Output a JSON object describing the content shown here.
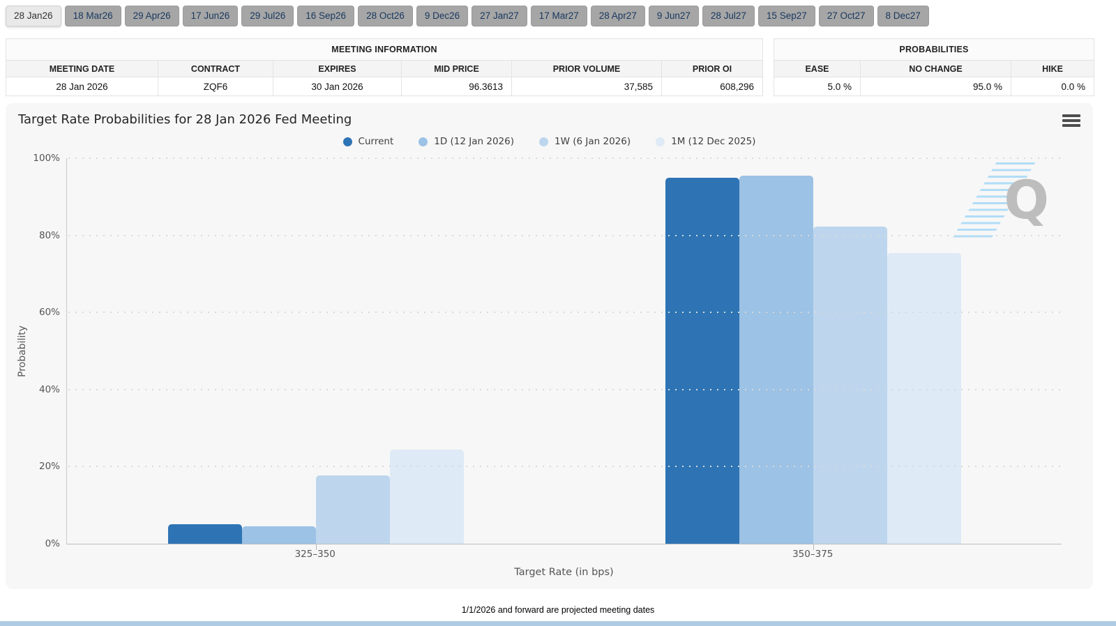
{
  "tabs": [
    {
      "label": "28 Jan26",
      "active": true
    },
    {
      "label": "18 Mar26",
      "active": false
    },
    {
      "label": "29 Apr26",
      "active": false
    },
    {
      "label": "17 Jun26",
      "active": false
    },
    {
      "label": "29 Jul26",
      "active": false
    },
    {
      "label": "16 Sep26",
      "active": false
    },
    {
      "label": "28 Oct26",
      "active": false
    },
    {
      "label": "9 Dec26",
      "active": false
    },
    {
      "label": "27 Jan27",
      "active": false
    },
    {
      "label": "17 Mar27",
      "active": false
    },
    {
      "label": "28 Apr27",
      "active": false
    },
    {
      "label": "9 Jun27",
      "active": false
    },
    {
      "label": "28 Jul27",
      "active": false
    },
    {
      "label": "15 Sep27",
      "active": false
    },
    {
      "label": "27 Oct27",
      "active": false
    },
    {
      "label": "8 Dec27",
      "active": false
    }
  ],
  "meeting_information": {
    "title": "MEETING INFORMATION",
    "columns": [
      "MEETING DATE",
      "CONTRACT",
      "EXPIRES",
      "MID PRICE",
      "PRIOR VOLUME",
      "PRIOR OI"
    ],
    "row": [
      "28 Jan 2026",
      "ZQF6",
      "30 Jan 2026",
      "96.3613",
      "37,585",
      "608,296"
    ]
  },
  "probabilities": {
    "title": "PROBABILITIES",
    "columns": [
      "EASE",
      "NO CHANGE",
      "HIKE"
    ],
    "row": [
      "5.0 %",
      "95.0 %",
      "0.0 %"
    ]
  },
  "chart": {
    "title": "Target Rate Probabilities for 28 Jan 2026 Fed Meeting",
    "watermark_letter": "Q"
  },
  "chart_data": {
    "type": "bar",
    "title": "Target Rate Probabilities for 28 Jan 2026 Fed Meeting",
    "categories": [
      "325–350",
      "350–375"
    ],
    "series": [
      {
        "name": "Current",
        "color": "#2E74B5",
        "values": [
          5.0,
          95.0
        ]
      },
      {
        "name": "1D (12 Jan 2026)",
        "color": "#9CC2E5",
        "values": [
          4.6,
          95.4
        ]
      },
      {
        "name": "1W (6 Jan 2026)",
        "color": "#BDD6EE",
        "values": [
          17.8,
          82.2
        ]
      },
      {
        "name": "1M (12 Dec 2025)",
        "color": "#DEEAF6",
        "values": [
          24.5,
          75.5
        ]
      }
    ],
    "xlabel": "Target Rate (in bps)",
    "ylabel": "Probability",
    "ylim": [
      0,
      100
    ],
    "yticks": [
      "0%",
      "20%",
      "40%",
      "60%",
      "80%",
      "100%"
    ],
    "legend_position": "top-center",
    "grid": "dotted-horizontal"
  },
  "footer": {
    "note": "1/1/2026 and forward are projected meeting dates"
  },
  "colors": {
    "active_tab_bg": "#E9E9E9",
    "inactive_tab_bg": "#A6A6A6",
    "tab_text": "#17375E",
    "panel_bg": "#F7F7F7",
    "bottom_bar": "#AECBE3"
  }
}
